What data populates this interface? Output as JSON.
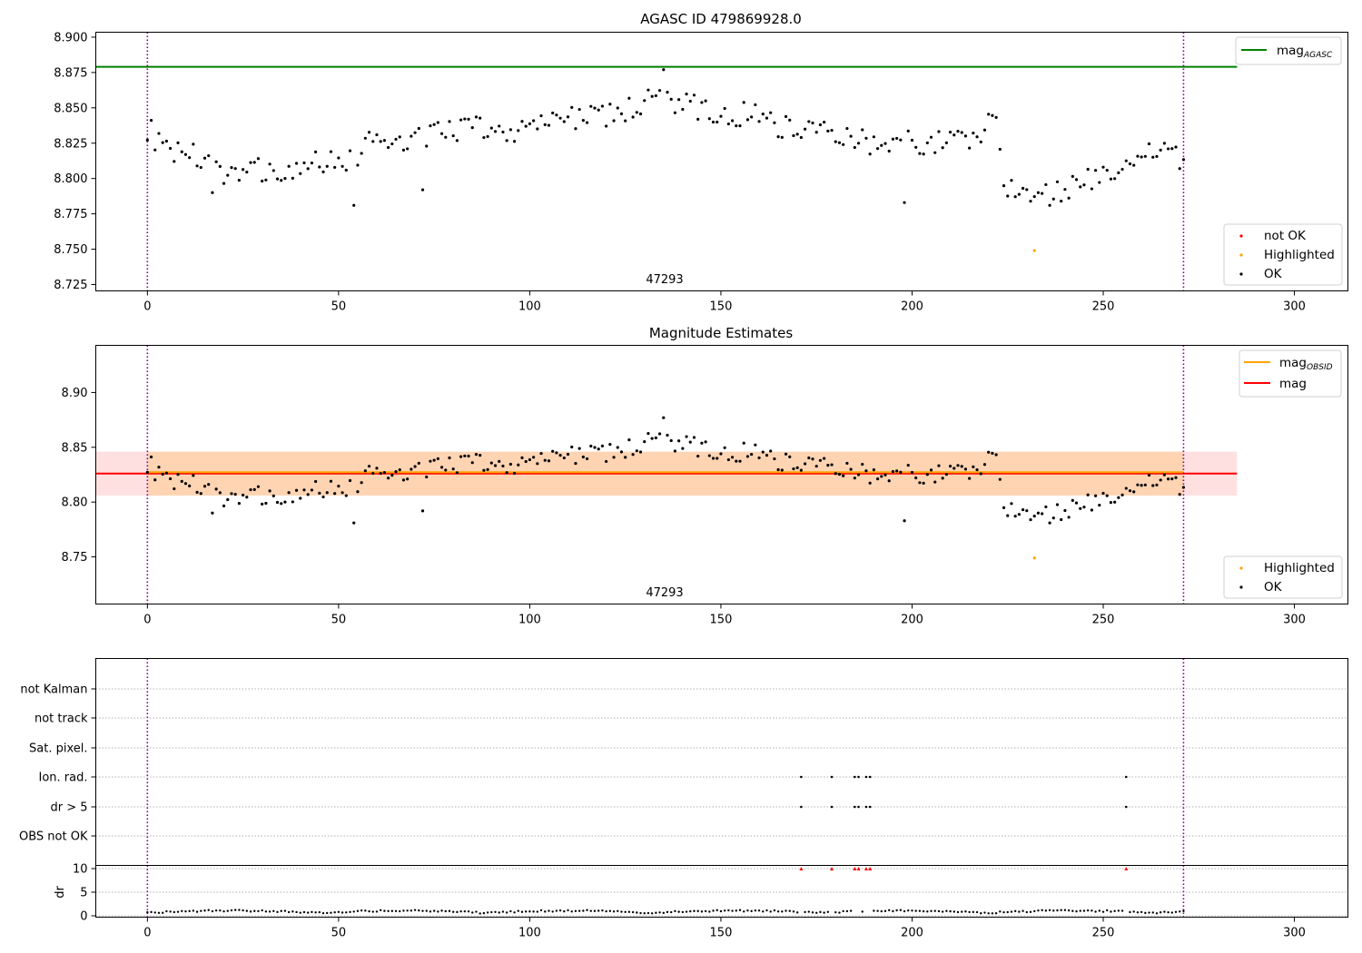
{
  "chart_data": [
    {
      "type": "scatter",
      "title": "AGASC ID 479869928.0",
      "xlim": [
        -13.5,
        314
      ],
      "ylim": [
        8.7205,
        8.9035
      ],
      "xticks": [
        0,
        50,
        100,
        150,
        200,
        250,
        300
      ],
      "yticks": [
        8.725,
        8.75,
        8.775,
        8.8,
        8.825,
        8.85,
        8.875,
        8.9
      ],
      "ytick_labels": [
        "8.725",
        "8.750",
        "8.775",
        "8.800",
        "8.825",
        "8.850",
        "8.875",
        "8.900"
      ],
      "grid": false,
      "obsid_boundaries": [
        0,
        271
      ],
      "obsid_labels": [
        {
          "x": 135.5,
          "label": "47293"
        }
      ],
      "mag_agasc": {
        "value": 8.879,
        "x": [
          -13.5,
          285
        ],
        "color": "#008000"
      },
      "legend_lines": {
        "location": "upper right",
        "entries": [
          {
            "name": "mag",
            "sub": "AGASC",
            "color": "#008000"
          }
        ]
      },
      "legend_points": {
        "location": "lower right",
        "entries": [
          {
            "name": "not OK",
            "color": "#ff0000"
          },
          {
            "name": "Highlighted",
            "color": "#ffa500"
          },
          {
            "name": "OK",
            "color": "#000000"
          }
        ]
      },
      "highlighted": [
        {
          "x": 232,
          "y": 8.749
        }
      ]
    },
    {
      "type": "scatter",
      "title": "Magnitude Estimates",
      "xlim": [
        -13.5,
        314
      ],
      "ylim": [
        8.707,
        8.943
      ],
      "xticks": [
        0,
        50,
        100,
        150,
        200,
        250,
        300
      ],
      "yticks": [
        8.75,
        8.8,
        8.85,
        8.9
      ],
      "ytick_labels": [
        "8.75",
        "8.80",
        "8.85",
        "8.90"
      ],
      "grid": false,
      "obsid_boundaries": [
        0,
        271
      ],
      "obsid_labels": [
        {
          "x": 135.5,
          "label": "47293"
        }
      ],
      "mag_obsid": {
        "value": 8.826,
        "band": [
          8.806,
          8.846
        ],
        "color": "#ffa500"
      },
      "mag": {
        "value": 8.826,
        "band": [
          8.806,
          8.846
        ],
        "color": "#ff0000"
      },
      "legend_lines": {
        "location": "upper right",
        "entries": [
          {
            "name": "mag",
            "sub": "OBSID",
            "color": "#ffa500"
          },
          {
            "name": "mag",
            "sub": "",
            "color": "#ff0000"
          }
        ]
      },
      "legend_points": {
        "location": "lower right",
        "entries": [
          {
            "name": "Highlighted",
            "color": "#ffa500"
          },
          {
            "name": "OK",
            "color": "#000000"
          }
        ]
      },
      "highlighted": [
        {
          "x": 232,
          "y": 8.749
        }
      ]
    },
    {
      "type": "scatter",
      "title": "",
      "xlim": [
        -13.5,
        314
      ],
      "xticks": [
        0,
        50,
        100,
        150,
        200,
        250,
        300
      ],
      "flag_rows": [
        "not Kalman",
        "not track",
        "Sat. pixel.",
        "Ion. rad.",
        "dr > 5",
        "OBS not OK"
      ],
      "ylabel": "dr",
      "dr_yticks": [
        0,
        5,
        10
      ],
      "dr_ylim": [
        -0.5,
        11
      ],
      "obsid_boundaries": [
        0,
        271
      ],
      "flagged_ion_rad_x": [
        171,
        179,
        185,
        186,
        188,
        189,
        256
      ],
      "flagged_dr_gt5_x": [
        171,
        179,
        185,
        186,
        188,
        189,
        256
      ],
      "dr_clipped_x": [
        171,
        179,
        185,
        186,
        188,
        189,
        256
      ],
      "dr_clipped_color": "#ff0000"
    }
  ]
}
